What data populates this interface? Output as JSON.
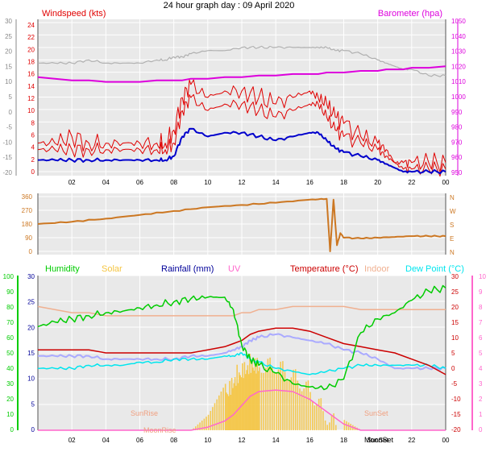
{
  "title": "24 hour graph day : 09 April 2020",
  "colors": {
    "windspeed": "#e00000",
    "wind_avg": "#0000cc",
    "barometer": "#dd00dd",
    "outdoor_hum_gray": "#b0b0b0",
    "wind_dir": "#cc7722",
    "humidity": "#00cc00",
    "solar": "#f5c542",
    "rainfall": "#000099",
    "uv": "#ff66cc",
    "temperature": "#cc0000",
    "indoor": "#f0b090",
    "dewpoint": "#00e5ee",
    "temp_lilac": "#aaaaff"
  },
  "chart_data": [
    {
      "type": "line",
      "panel": "wind",
      "x_ticks": [
        "02",
        "04",
        "06",
        "08",
        "10",
        "12",
        "14",
        "16",
        "18",
        "20",
        "22",
        "00"
      ],
      "left_axis": {
        "label": "Windspeed (kts)",
        "ticks": [
          "24",
          "22",
          "20",
          "18",
          "16",
          "14",
          "12",
          "10",
          "8",
          "6",
          "4",
          "2",
          "0"
        ],
        "ylim": [
          0,
          24
        ]
      },
      "outer_left_axis": {
        "ticks": [
          "30",
          "25",
          "20",
          "15",
          "10",
          "5",
          "0",
          "-5",
          "-10",
          "-15",
          "-20"
        ],
        "ylim": [
          -20,
          30
        ]
      },
      "right_axis": {
        "label": "Barometer (hpa)",
        "ticks": [
          "1050",
          "1040",
          "1030",
          "1020",
          "1010",
          "1000",
          "990",
          "980",
          "970",
          "960",
          "950"
        ],
        "ylim": [
          950,
          1050
        ]
      },
      "x": [
        0,
        1,
        2,
        3,
        4,
        5,
        6,
        7,
        7.5,
        8,
        8.5,
        9,
        10,
        11,
        12,
        13,
        14,
        15,
        16,
        16.5,
        17,
        17.5,
        18,
        19,
        20,
        20.5,
        21,
        21.5,
        22,
        23,
        24
      ],
      "series": [
        {
          "name": "Windspeed (kts)",
          "axis": "left",
          "values": [
            4,
            4,
            4,
            4,
            4,
            4,
            4,
            4,
            4,
            5,
            10,
            12,
            10,
            11,
            11,
            10,
            9,
            10,
            11,
            11,
            9,
            7,
            6,
            5,
            4,
            3,
            2,
            1,
            1,
            1,
            1
          ]
        },
        {
          "name": "Gust",
          "axis": "left",
          "values": [
            5,
            5,
            6,
            5,
            5,
            5,
            5,
            5,
            5,
            7,
            12,
            14,
            12,
            13,
            13,
            12,
            11,
            12,
            13,
            12,
            11,
            9,
            8,
            6,
            5,
            4,
            2,
            2,
            2,
            2,
            2
          ]
        },
        {
          "name": "Barometer (hpa)",
          "axis": "right",
          "values": [
            1013,
            1012,
            1011,
            1011,
            1010,
            1010,
            1010,
            1011,
            1011,
            1011,
            1011,
            1012,
            1012,
            1013,
            1013,
            1014,
            1014,
            1015,
            1015,
            1015,
            1016,
            1016,
            1016,
            1017,
            1017,
            1018,
            1018,
            1018,
            1019,
            1019,
            1020
          ]
        },
        {
          "name": "Gray",
          "axis": "outer",
          "values": [
            16,
            16,
            16,
            17,
            16,
            16,
            16,
            17,
            17,
            18,
            18,
            19,
            20,
            20,
            21,
            21,
            21,
            21,
            21,
            21,
            21,
            20,
            20,
            19,
            17,
            16,
            15,
            14,
            14,
            12,
            12
          ]
        }
      ]
    },
    {
      "type": "line",
      "panel": "wind_direction",
      "x_ticks": [
        "02",
        "04",
        "06",
        "08",
        "10",
        "12",
        "14",
        "16",
        "18",
        "20",
        "22",
        "00"
      ],
      "left_axis": {
        "ticks": [
          "360",
          "270",
          "180",
          "90",
          "0"
        ],
        "ylim": [
          0,
          360
        ]
      },
      "right_axis": {
        "ticks": [
          "N",
          "W",
          "S",
          "E",
          "N"
        ]
      },
      "x": [
        0,
        2,
        4,
        6,
        8,
        10,
        12,
        14,
        16,
        17,
        17.2,
        17.4,
        17.6,
        17.8,
        18,
        19,
        20,
        21,
        22,
        23,
        24
      ],
      "series": [
        {
          "name": "Direction",
          "values": [
            180,
            195,
            215,
            240,
            265,
            290,
            305,
            320,
            340,
            345,
            0,
            340,
            40,
            120,
            90,
            85,
            90,
            95,
            100,
            100,
            100
          ]
        }
      ]
    },
    {
      "type": "line",
      "panel": "temperature",
      "x_ticks": [
        "02",
        "04",
        "06",
        "08",
        "10",
        "12",
        "14",
        "16",
        "18",
        "SunSet",
        "22",
        "00"
      ],
      "left_axis": {
        "ticks": [
          "30",
          "25",
          "20",
          "15",
          "10",
          "5",
          "0"
        ],
        "ylim": [
          0,
          30
        ]
      },
      "outer_left_axis": {
        "ticks": [
          "100",
          "90",
          "80",
          "70",
          "60",
          "50",
          "40",
          "30",
          "20",
          "10",
          "0"
        ],
        "ylim": [
          0,
          100
        ]
      },
      "right_axis": {
        "ticks": [
          "30",
          "25",
          "20",
          "15",
          "10",
          "5",
          "0",
          "-5",
          "-10",
          "-15",
          "-20"
        ],
        "ylim": [
          -20,
          30
        ]
      },
      "outer_right_axis": {
        "ticks": [
          "10",
          "9",
          "8",
          "7",
          "6",
          "5",
          "4",
          "3",
          "2",
          "1",
          "0"
        ],
        "ylim": [
          0,
          10
        ]
      },
      "legend": [
        "Humidity",
        "Solar",
        "Rainfall (mm)",
        "UV",
        "Temperature (°C)",
        "Indoor",
        "Dew Point (°C)"
      ],
      "annotations": [
        "SunRise",
        "SunSet",
        "MoonRise",
        "MoonSet",
        "SunSet"
      ],
      "x": [
        0,
        1,
        2,
        3,
        4,
        5,
        6,
        7,
        8,
        9,
        10,
        11,
        11.5,
        12,
        12.5,
        13,
        14,
        15,
        16,
        17,
        18,
        19,
        20,
        21,
        22,
        23,
        24
      ],
      "series": [
        {
          "name": "Humidity",
          "axis": "outer-left",
          "values": [
            67,
            70,
            72,
            74,
            76,
            77,
            79,
            81,
            83,
            85,
            86,
            86,
            78,
            55,
            46,
            42,
            37,
            30,
            28,
            27,
            33,
            63,
            72,
            76,
            84,
            90,
            92
          ]
        },
        {
          "name": "Solar",
          "axis": "left",
          "values": [
            0,
            0,
            0,
            0,
            0,
            0,
            0,
            0,
            0,
            0,
            3,
            9,
            12,
            14,
            15,
            15,
            15,
            13,
            10,
            5,
            2,
            0,
            0,
            0,
            0,
            0,
            0
          ]
        },
        {
          "name": "Temperature (°C)",
          "axis": "right",
          "values": [
            6,
            6,
            6,
            6,
            5,
            5,
            5,
            5,
            5,
            5,
            6,
            7,
            8,
            9,
            11,
            12,
            13,
            13,
            12,
            10,
            8,
            7,
            6,
            5,
            3,
            1,
            -2
          ]
        },
        {
          "name": "Indoor",
          "axis": "right",
          "values": [
            20,
            19,
            18,
            18,
            17,
            17,
            17,
            17,
            17,
            17,
            17,
            17,
            17,
            18,
            18,
            19,
            19,
            20,
            20,
            20,
            20,
            19,
            19,
            19,
            19,
            19,
            19
          ]
        },
        {
          "name": "Dew Point (°C)",
          "axis": "right",
          "values": [
            0,
            0,
            0,
            1,
            1,
            1,
            2,
            2,
            3,
            3,
            3,
            4,
            4,
            5,
            3,
            2,
            0,
            -1,
            -2,
            -1,
            0,
            1,
            1,
            1,
            1,
            1,
            0
          ]
        },
        {
          "name": "Temp lilac",
          "axis": "right",
          "values": [
            4,
            4,
            4,
            4,
            3,
            3,
            3,
            3,
            3,
            4,
            4,
            5,
            6,
            7,
            9,
            10,
            11,
            10,
            9,
            8,
            6,
            5,
            3,
            0,
            0,
            0,
            0
          ]
        },
        {
          "name": "UV",
          "axis": "outer-right",
          "values": [
            0,
            0,
            0,
            0,
            0,
            0,
            0,
            0,
            0,
            0,
            0.2,
            0.6,
            1.0,
            1.6,
            2.2,
            2.5,
            2.6,
            2.5,
            2.0,
            1.2,
            0.4,
            0,
            0,
            0,
            0,
            0,
            0
          ]
        }
      ]
    }
  ]
}
